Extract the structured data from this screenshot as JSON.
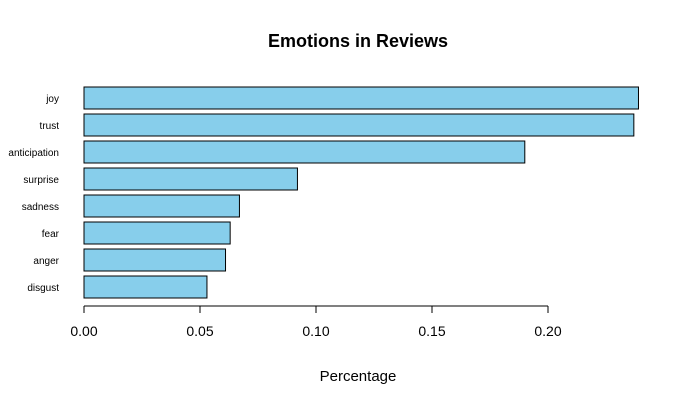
{
  "chart_data": {
    "type": "bar",
    "orientation": "horizontal",
    "title": "Emotions in Reviews",
    "xlabel": "Percentage",
    "ylabel": "",
    "categories": [
      "joy",
      "trust",
      "anticipation",
      "surprise",
      "sadness",
      "fear",
      "anger",
      "disgust"
    ],
    "values": [
      0.239,
      0.237,
      0.19,
      0.092,
      0.067,
      0.063,
      0.061,
      0.053
    ],
    "xlim": [
      0,
      0.24
    ],
    "xticks": [
      0.0,
      0.05,
      0.1,
      0.15,
      0.2
    ],
    "xtick_labels": [
      "0.00",
      "0.05",
      "0.10",
      "0.15",
      "0.20"
    ],
    "bar_color": "#87CEEB",
    "grid": false,
    "legend": "none"
  }
}
